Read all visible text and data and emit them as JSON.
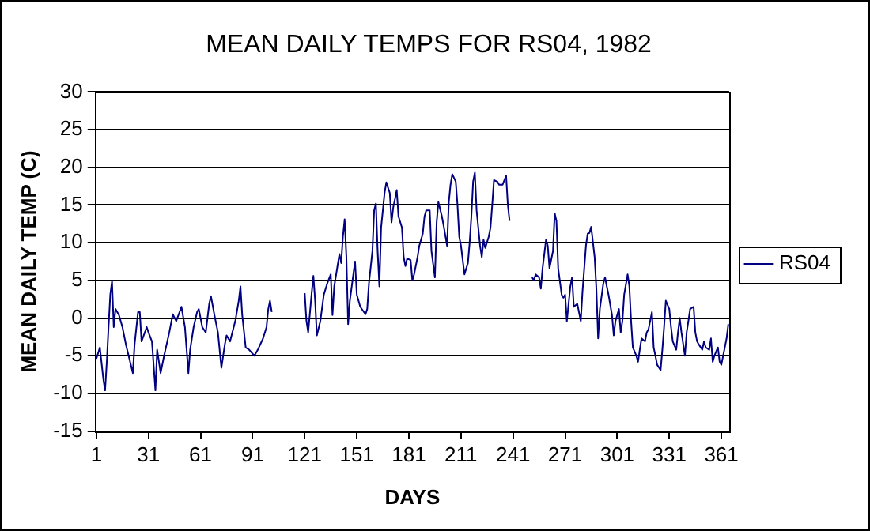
{
  "chart_data": {
    "type": "line",
    "title": "MEAN DAILY TEMPS FOR RS04, 1982",
    "xlabel": "DAYS",
    "ylabel": "MEAN DAILY TEMP (C)",
    "xlim": [
      0.5,
      365.5
    ],
    "xticks": [
      1,
      31,
      61,
      91,
      121,
      151,
      181,
      211,
      241,
      271,
      301,
      331,
      361
    ],
    "ylim": [
      -15,
      30
    ],
    "yticks": [
      -15,
      -10,
      -5,
      0,
      5,
      10,
      15,
      20,
      25,
      30
    ],
    "grid": "y",
    "legend": "right",
    "marker": "none",
    "line_style": "solid",
    "x": [
      1,
      3,
      5,
      6,
      7,
      8,
      9,
      10,
      11,
      12,
      14,
      16,
      18,
      20,
      22,
      23,
      25,
      26,
      27,
      30,
      31,
      33,
      35,
      36,
      38,
      40,
      43,
      45,
      47,
      50,
      52,
      54,
      55,
      57,
      59,
      60,
      62,
      64,
      66,
      67,
      69,
      71,
      73,
      75,
      76,
      78,
      81,
      83,
      84,
      85,
      87,
      89,
      92,
      94,
      97,
      99,
      100,
      101,
      102,
      110,
      121,
      122,
      123,
      125,
      126,
      127,
      128,
      130,
      132,
      134,
      136,
      137,
      138,
      141,
      142,
      143,
      144,
      145,
      146,
      147,
      149,
      150,
      151,
      153,
      156,
      157,
      158,
      160,
      161,
      162,
      163,
      164,
      165,
      166,
      167,
      168,
      170,
      171,
      172,
      173,
      174,
      175,
      177,
      178,
      179,
      180,
      182,
      183,
      184,
      186,
      187,
      189,
      190,
      191,
      193,
      194,
      196,
      197,
      198,
      200,
      201,
      203,
      204,
      205,
      206,
      208,
      209,
      210,
      211,
      213,
      215,
      216,
      217,
      218,
      219,
      220,
      222,
      223,
      224,
      225,
      227,
      228,
      229,
      230,
      232,
      233,
      235,
      236,
      237,
      238,
      239,
      246,
      252,
      253,
      254,
      256,
      257,
      258,
      260,
      261,
      262,
      264,
      265,
      266,
      267,
      269,
      270,
      271,
      272,
      274,
      275,
      276,
      278,
      280,
      281,
      283,
      284,
      285,
      286,
      288,
      289,
      290,
      291,
      293,
      294,
      295,
      296,
      298,
      299,
      300,
      302,
      303,
      304,
      305,
      307,
      308,
      309,
      310,
      312,
      313,
      314,
      315,
      317,
      318,
      319,
      321,
      322,
      323,
      324,
      326,
      327,
      328,
      329,
      331,
      332,
      333,
      335,
      336,
      337,
      338,
      340,
      341,
      342,
      343,
      345,
      346,
      347,
      348,
      350,
      351,
      352,
      354,
      355,
      356,
      357,
      359,
      360,
      361,
      364,
      365
    ],
    "series": [
      {
        "name": "RS04",
        "color": "#000080",
        "values": [
          -5.4,
          -3.9,
          -8.1,
          -9.6,
          -5.8,
          -1.2,
          3.1,
          4.9,
          -1.2,
          1.2,
          0.4,
          -1.2,
          -3.5,
          -5.4,
          -7.3,
          -3.5,
          0.8,
          0.8,
          -3.1,
          -1.2,
          -1.9,
          -3.1,
          -9.6,
          -4.2,
          -7.3,
          -5.0,
          -1.9,
          0.5,
          -0.4,
          1.5,
          -1.2,
          -7.3,
          -4.2,
          -1.2,
          0.8,
          1.2,
          -1.2,
          -1.9,
          1.9,
          2.9,
          0.4,
          -1.9,
          -6.6,
          -3.5,
          -2.3,
          -3.1,
          -0.4,
          2.3,
          4.2,
          0.4,
          -3.9,
          -4.2,
          -5.0,
          -4.2,
          -2.7,
          -1.2,
          1.2,
          2.3,
          0.8,
          null,
          3.3,
          -0.4,
          -1.9,
          3.3,
          5.6,
          2.3,
          -2.3,
          -0.4,
          3.1,
          4.6,
          5.8,
          0.4,
          4.2,
          8.5,
          7.3,
          10.8,
          13.1,
          8.1,
          -0.8,
          2.3,
          5.8,
          7.5,
          3.1,
          1.5,
          0.5,
          1.2,
          4.6,
          8.9,
          14.3,
          15.2,
          8.9,
          4.2,
          12.0,
          14.3,
          16.6,
          18.0,
          16.6,
          12.7,
          14.7,
          15.8,
          17.0,
          13.5,
          12.0,
          8.1,
          6.9,
          7.9,
          7.7,
          5.0,
          5.8,
          8.1,
          9.6,
          11.2,
          13.5,
          14.3,
          14.3,
          8.9,
          5.4,
          12.7,
          15.4,
          13.5,
          12.3,
          9.6,
          15.4,
          17.7,
          19.1,
          18.1,
          15.0,
          10.8,
          9.6,
          5.8,
          7.3,
          10.0,
          13.5,
          18.1,
          19.3,
          14.3,
          9.6,
          8.1,
          10.4,
          9.3,
          10.8,
          12.0,
          15.0,
          18.3,
          18.1,
          17.7,
          17.7,
          18.3,
          18.9,
          15.0,
          12.9,
          null,
          5.4,
          5.0,
          5.8,
          5.4,
          3.9,
          6.6,
          10.4,
          9.6,
          6.6,
          8.9,
          13.9,
          12.9,
          6.6,
          3.1,
          2.7,
          3.1,
          -0.4,
          4.2,
          5.4,
          1.5,
          1.9,
          -0.4,
          3.5,
          9.6,
          11.2,
          11.3,
          12.1,
          8.1,
          3.9,
          -2.7,
          1.2,
          4.6,
          5.4,
          4.2,
          3.1,
          0.4,
          -2.3,
          -0.4,
          1.2,
          -1.9,
          -0.4,
          3.1,
          5.8,
          4.2,
          -0.4,
          -3.9,
          -5.0,
          -5.8,
          -4.2,
          -2.7,
          -3.1,
          -1.9,
          -1.5,
          0.8,
          -3.9,
          -5.0,
          -6.2,
          -6.9,
          -4.2,
          -1.2,
          2.3,
          1.2,
          -1.2,
          -3.1,
          -4.2,
          -1.9,
          0,
          -1.9,
          -5.0,
          -1.9,
          -0.4,
          1.2,
          1.5,
          -1.9,
          -3.1,
          -3.5,
          -4.2,
          -3.1,
          -3.9,
          -4.2,
          -2.7,
          -5.8,
          -5.0,
          -3.9,
          -5.8,
          -6.2,
          -2.7,
          -0.8
        ]
      }
    ]
  }
}
